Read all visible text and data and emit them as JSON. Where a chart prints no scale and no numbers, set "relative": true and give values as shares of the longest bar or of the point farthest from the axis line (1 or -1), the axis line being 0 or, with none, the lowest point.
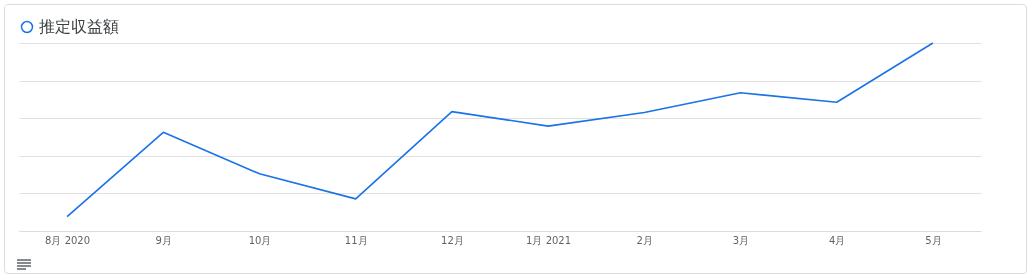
{
  "chart_data": {
    "type": "line",
    "relative": true,
    "categories": [
      "8月 2020",
      "9月",
      "10月",
      "11月",
      "12月",
      "1月 2021",
      "2月",
      "3月",
      "4月",
      "5月"
    ],
    "series": [
      {
        "name": "推定収益額",
        "color": "#1a73e8",
        "values": [
          0.077,
          0.525,
          0.304,
          0.171,
          0.635,
          0.558,
          0.63,
          0.735,
          0.685,
          1
        ]
      }
    ],
    "legend": "top left",
    "grid": "y",
    "marker": "none",
    "line_style": "solid"
  }
}
